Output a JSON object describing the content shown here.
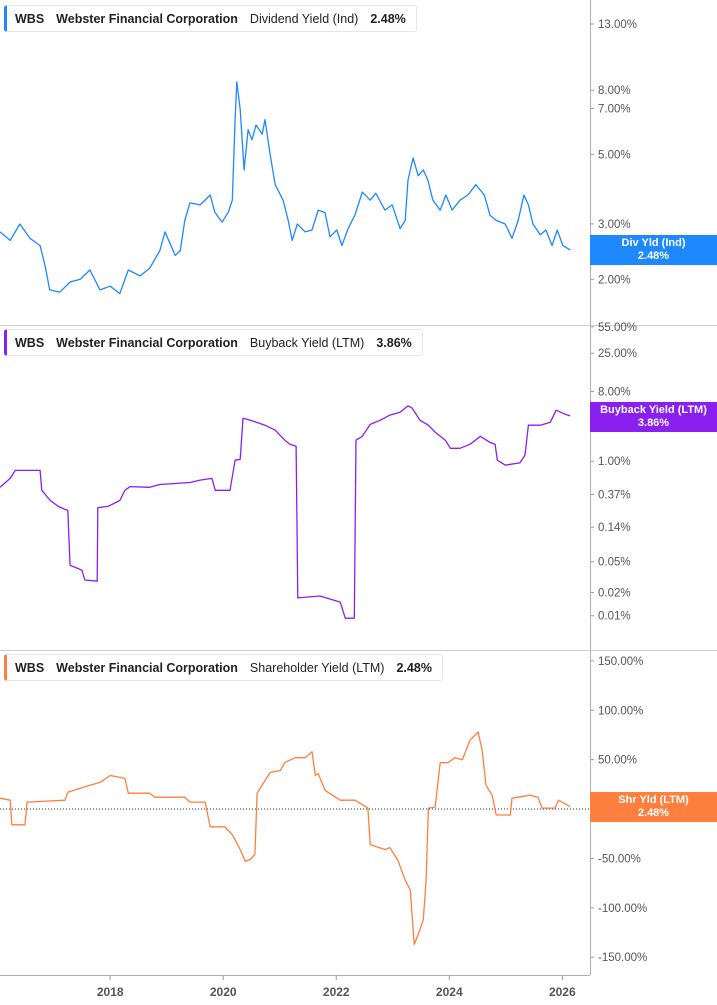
{
  "colors": {
    "dividend": "#1e88ff",
    "buyback": "#8a1ff0",
    "shareholder": "#ff7f3f",
    "axis": "#999999",
    "text": "#555555"
  },
  "x_axis": {
    "ticks": [
      2018,
      2020,
      2022,
      2024,
      2026
    ],
    "labels": [
      "2018",
      "2020",
      "2022",
      "2024",
      "2026"
    ]
  },
  "panels": [
    {
      "ticker": "WBS",
      "company": "Webster Financial Corporation",
      "metric": "Dividend Yield (Ind)",
      "value": "2.48%",
      "badge_label": "Div Yld (Ind)",
      "badge_value": "2.48%"
    },
    {
      "ticker": "WBS",
      "company": "Webster Financial Corporation",
      "metric": "Buyback Yield (LTM)",
      "value": "3.86%",
      "badge_label": "Buyback Yield (LTM)",
      "badge_value": "3.86%"
    },
    {
      "ticker": "WBS",
      "company": "Webster Financial Corporation",
      "metric": "Shareholder Yield (LTM)",
      "value": "2.48%",
      "badge_label": "Shr Yld (LTM)",
      "badge_value": "2.48%"
    }
  ],
  "chart_data": [
    {
      "type": "line",
      "series": [
        {
          "name": "Dividend Yield (Ind)",
          "color": "#1e88ff"
        }
      ],
      "yscale": "log",
      "xlim": [
        2016.05,
        2026.49
      ],
      "ylim": [
        1.43,
        15.5
      ],
      "yticks": [
        13,
        8,
        7,
        5,
        3,
        2
      ],
      "ytick_labels": [
        "13.00%",
        "8.00%",
        "7.00%",
        "5.00%",
        "3.00%",
        "2.00%"
      ],
      "points": [
        [
          2016.05,
          2.83
        ],
        [
          2016.23,
          2.66
        ],
        [
          2016.4,
          3.0
        ],
        [
          2016.58,
          2.7
        ],
        [
          2016.76,
          2.56
        ],
        [
          2016.85,
          2.2
        ],
        [
          2016.93,
          1.85
        ],
        [
          2017.11,
          1.82
        ],
        [
          2017.29,
          1.96
        ],
        [
          2017.47,
          2.0
        ],
        [
          2017.64,
          2.14
        ],
        [
          2017.82,
          1.85
        ],
        [
          2018.0,
          1.9
        ],
        [
          2018.17,
          1.8
        ],
        [
          2018.32,
          2.14
        ],
        [
          2018.53,
          2.05
        ],
        [
          2018.7,
          2.17
        ],
        [
          2018.88,
          2.47
        ],
        [
          2018.97,
          2.83
        ],
        [
          2019.15,
          2.38
        ],
        [
          2019.24,
          2.47
        ],
        [
          2019.32,
          3.08
        ],
        [
          2019.41,
          3.5
        ],
        [
          2019.59,
          3.45
        ],
        [
          2019.77,
          3.71
        ],
        [
          2019.85,
          3.27
        ],
        [
          2019.98,
          3.04
        ],
        [
          2020.09,
          3.27
        ],
        [
          2020.16,
          3.57
        ],
        [
          2020.21,
          6.45
        ],
        [
          2020.24,
          8.5
        ],
        [
          2020.3,
          6.94
        ],
        [
          2020.37,
          4.46
        ],
        [
          2020.44,
          5.99
        ],
        [
          2020.51,
          5.56
        ],
        [
          2020.58,
          6.2
        ],
        [
          2020.69,
          5.8
        ],
        [
          2020.74,
          6.45
        ],
        [
          2020.83,
          5.0
        ],
        [
          2020.92,
          4.0
        ],
        [
          2021.06,
          3.57
        ],
        [
          2021.15,
          3.08
        ],
        [
          2021.22,
          2.66
        ],
        [
          2021.31,
          3.0
        ],
        [
          2021.45,
          2.83
        ],
        [
          2021.57,
          2.87
        ],
        [
          2021.68,
          3.32
        ],
        [
          2021.8,
          3.26
        ],
        [
          2021.89,
          2.73
        ],
        [
          2022.01,
          2.87
        ],
        [
          2022.1,
          2.56
        ],
        [
          2022.21,
          2.9
        ],
        [
          2022.33,
          3.2
        ],
        [
          2022.46,
          3.79
        ],
        [
          2022.6,
          3.57
        ],
        [
          2022.7,
          3.76
        ],
        [
          2022.86,
          3.32
        ],
        [
          2022.99,
          3.45
        ],
        [
          2023.13,
          2.9
        ],
        [
          2023.22,
          3.08
        ],
        [
          2023.27,
          4.14
        ],
        [
          2023.36,
          4.87
        ],
        [
          2023.45,
          4.27
        ],
        [
          2023.54,
          4.46
        ],
        [
          2023.62,
          4.14
        ],
        [
          2023.71,
          3.57
        ],
        [
          2023.84,
          3.32
        ],
        [
          2023.94,
          3.71
        ],
        [
          2024.05,
          3.32
        ],
        [
          2024.19,
          3.57
        ],
        [
          2024.33,
          3.71
        ],
        [
          2024.47,
          4.0
        ],
        [
          2024.62,
          3.71
        ],
        [
          2024.72,
          3.2
        ],
        [
          2024.83,
          3.08
        ],
        [
          2024.99,
          3.0
        ],
        [
          2025.11,
          2.7
        ],
        [
          2025.22,
          3.08
        ],
        [
          2025.32,
          3.71
        ],
        [
          2025.4,
          3.45
        ],
        [
          2025.48,
          3.0
        ],
        [
          2025.61,
          2.77
        ],
        [
          2025.71,
          2.87
        ],
        [
          2025.82,
          2.56
        ],
        [
          2025.91,
          2.87
        ],
        [
          2026.01,
          2.56
        ],
        [
          2026.14,
          2.48
        ]
      ]
    },
    {
      "type": "line",
      "series": [
        {
          "name": "Buyback Yield (LTM)",
          "color": "#8a1ff0"
        }
      ],
      "yscale": "log",
      "xlim": [
        2016.05,
        2026.49
      ],
      "ylim": [
        0.0036,
        58
      ],
      "yticks": [
        55,
        25,
        8,
        3,
        1,
        0.37,
        0.14,
        0.05,
        0.02,
        0.01
      ],
      "ytick_labels": [
        "55.00%",
        "25.00%",
        "8.00%",
        "3.00%",
        "1.00%",
        "0.37%",
        "0.14%",
        "0.05%",
        "0.02%",
        "0.01%"
      ],
      "points": [
        [
          2016.05,
          0.46
        ],
        [
          2016.23,
          0.6
        ],
        [
          2016.32,
          0.76
        ],
        [
          2016.76,
          0.76
        ],
        [
          2016.79,
          0.42
        ],
        [
          2016.94,
          0.31
        ],
        [
          2017.08,
          0.26
        ],
        [
          2017.25,
          0.23
        ],
        [
          2017.29,
          0.045
        ],
        [
          2017.5,
          0.039
        ],
        [
          2017.55,
          0.029
        ],
        [
          2017.77,
          0.028
        ],
        [
          2017.78,
          0.25
        ],
        [
          2017.96,
          0.26
        ],
        [
          2018.17,
          0.31
        ],
        [
          2018.26,
          0.42
        ],
        [
          2018.35,
          0.47
        ],
        [
          2018.7,
          0.46
        ],
        [
          2018.88,
          0.5
        ],
        [
          2019.41,
          0.53
        ],
        [
          2019.59,
          0.57
        ],
        [
          2019.8,
          0.6
        ],
        [
          2019.86,
          0.42
        ],
        [
          2020.12,
          0.42
        ],
        [
          2020.21,
          1.03
        ],
        [
          2020.3,
          1.06
        ],
        [
          2020.35,
          3.6
        ],
        [
          2020.48,
          3.4
        ],
        [
          2020.74,
          2.93
        ],
        [
          2020.92,
          2.52
        ],
        [
          2021.09,
          1.87
        ],
        [
          2021.18,
          1.66
        ],
        [
          2021.29,
          1.56
        ],
        [
          2021.32,
          0.017
        ],
        [
          2021.71,
          0.018
        ],
        [
          2022.07,
          0.015
        ],
        [
          2022.16,
          0.0093
        ],
        [
          2022.32,
          0.0093
        ],
        [
          2022.35,
          1.87
        ],
        [
          2022.46,
          2.1
        ],
        [
          2022.6,
          3.0
        ],
        [
          2022.78,
          3.4
        ],
        [
          2022.95,
          3.95
        ],
        [
          2023.13,
          4.3
        ],
        [
          2023.27,
          5.2
        ],
        [
          2023.34,
          4.9
        ],
        [
          2023.48,
          3.4
        ],
        [
          2023.63,
          2.93
        ],
        [
          2023.75,
          2.37
        ],
        [
          2023.93,
          1.87
        ],
        [
          2024.02,
          1.47
        ],
        [
          2024.19,
          1.47
        ],
        [
          2024.37,
          1.66
        ],
        [
          2024.55,
          2.1
        ],
        [
          2024.72,
          1.75
        ],
        [
          2024.81,
          1.66
        ],
        [
          2024.85,
          1.03
        ],
        [
          2024.99,
          0.89
        ],
        [
          2025.25,
          0.95
        ],
        [
          2025.34,
          1.2
        ],
        [
          2025.4,
          2.93
        ],
        [
          2025.61,
          2.93
        ],
        [
          2025.79,
          3.2
        ],
        [
          2025.89,
          4.58
        ],
        [
          2026.05,
          4.06
        ],
        [
          2026.14,
          3.86
        ]
      ]
    },
    {
      "type": "line",
      "series": [
        {
          "name": "Shareholder Yield (LTM)",
          "color": "#ff7f3f"
        }
      ],
      "yscale": "linear",
      "xlim": [
        2016.05,
        2026.49
      ],
      "ylim": [
        -168,
        161
      ],
      "yticks": [
        150,
        100,
        50,
        0,
        -50,
        -100,
        -150
      ],
      "ytick_labels": [
        "150.00%",
        "100.00%",
        "50.00%",
        "0.00%",
        "-50.00%",
        "-100.00%",
        "-150.00%"
      ],
      "zero_line": true,
      "points": [
        [
          2016.05,
          11
        ],
        [
          2016.23,
          9
        ],
        [
          2016.26,
          -16
        ],
        [
          2016.49,
          -16
        ],
        [
          2016.53,
          7
        ],
        [
          2017.2,
          9
        ],
        [
          2017.25,
          17
        ],
        [
          2017.64,
          24
        ],
        [
          2017.82,
          27
        ],
        [
          2018.0,
          34
        ],
        [
          2018.26,
          31
        ],
        [
          2018.32,
          16
        ],
        [
          2018.7,
          16
        ],
        [
          2018.79,
          12
        ],
        [
          2019.32,
          12
        ],
        [
          2019.41,
          7
        ],
        [
          2019.68,
          7
        ],
        [
          2019.77,
          -18
        ],
        [
          2020.03,
          -18
        ],
        [
          2020.16,
          -26
        ],
        [
          2020.3,
          -41
        ],
        [
          2020.39,
          -53
        ],
        [
          2020.48,
          -51
        ],
        [
          2020.56,
          -46
        ],
        [
          2020.6,
          16
        ],
        [
          2020.83,
          37
        ],
        [
          2021.01,
          39
        ],
        [
          2021.09,
          47
        ],
        [
          2021.27,
          52
        ],
        [
          2021.45,
          52
        ],
        [
          2021.57,
          58
        ],
        [
          2021.63,
          34
        ],
        [
          2021.68,
          36
        ],
        [
          2021.8,
          19
        ],
        [
          2022.07,
          9
        ],
        [
          2022.33,
          9
        ],
        [
          2022.56,
          1
        ],
        [
          2022.6,
          -36
        ],
        [
          2022.86,
          -41
        ],
        [
          2022.95,
          -39
        ],
        [
          2023.09,
          -52
        ],
        [
          2023.22,
          -72
        ],
        [
          2023.31,
          -82
        ],
        [
          2023.38,
          -137
        ],
        [
          2023.45,
          -127
        ],
        [
          2023.54,
          -112
        ],
        [
          2023.59,
          -72
        ],
        [
          2023.63,
          1
        ],
        [
          2023.75,
          2
        ],
        [
          2023.84,
          47
        ],
        [
          2023.98,
          47
        ],
        [
          2024.1,
          52
        ],
        [
          2024.23,
          50
        ],
        [
          2024.37,
          70
        ],
        [
          2024.51,
          78
        ],
        [
          2024.58,
          60
        ],
        [
          2024.65,
          24
        ],
        [
          2024.76,
          14
        ],
        [
          2024.83,
          -6
        ],
        [
          2025.08,
          -6
        ],
        [
          2025.11,
          11
        ],
        [
          2025.43,
          14
        ],
        [
          2025.57,
          12
        ],
        [
          2025.64,
          1
        ],
        [
          2025.87,
          1
        ],
        [
          2025.93,
          9
        ],
        [
          2026.14,
          2.48
        ]
      ]
    }
  ]
}
